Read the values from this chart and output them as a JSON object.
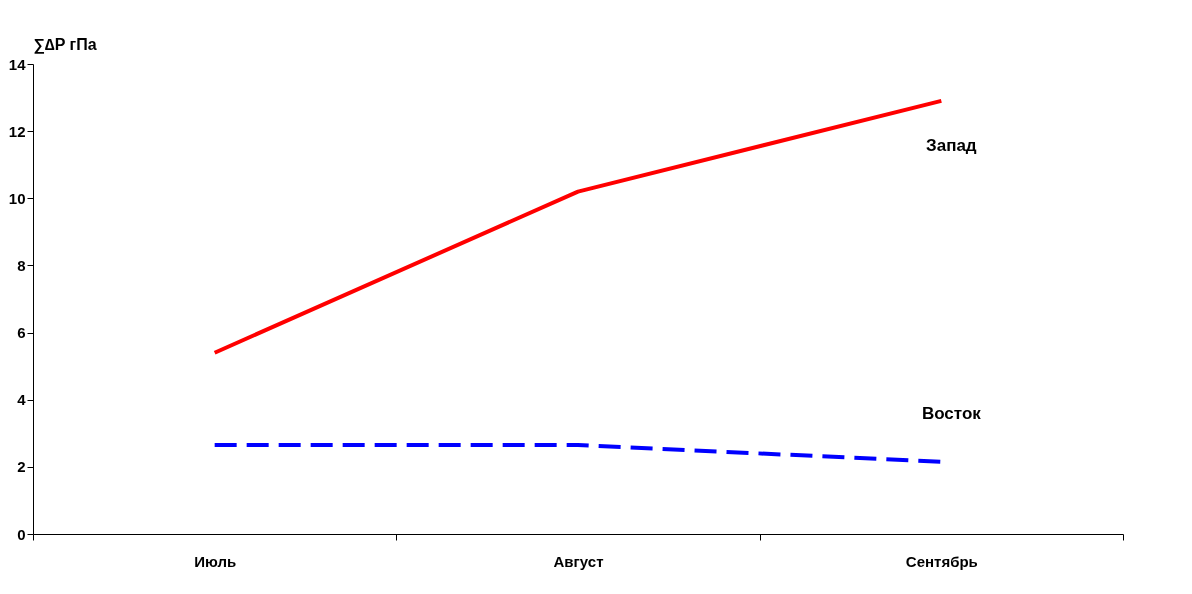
{
  "chart_data": {
    "type": "line",
    "ylabel": "∑∆P  гПа",
    "categories": [
      "Июль",
      "Август",
      "Сентябрь"
    ],
    "series": [
      {
        "name": "Запад",
        "color": "#ff0000",
        "values": [
          5.4,
          10.2,
          12.9
        ],
        "line_style": "solid"
      },
      {
        "name": "Восток",
        "color": "#0000ff",
        "values": [
          2.65,
          2.65,
          2.15
        ],
        "line_style": "dashed"
      }
    ],
    "ylim": [
      0,
      14
    ],
    "yticks": [
      0,
      2,
      4,
      6,
      8,
      10,
      12,
      14
    ],
    "grid": false,
    "marker": "none"
  }
}
